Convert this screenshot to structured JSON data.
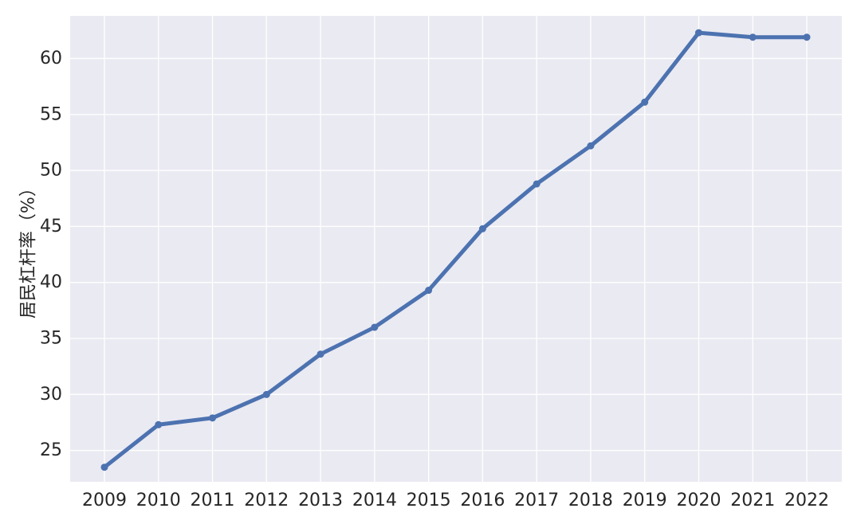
{
  "chart_data": {
    "type": "line",
    "title": "",
    "xlabel": "",
    "ylabel": "居民杠杆率（%）",
    "x": [
      "2009",
      "2010",
      "2011",
      "2012",
      "2013",
      "2014",
      "2015",
      "2016",
      "2017",
      "2018",
      "2019",
      "2020",
      "2021",
      "2022"
    ],
    "series": [
      {
        "values": [
          23.5,
          27.3,
          27.9,
          30.0,
          33.6,
          36.0,
          39.3,
          44.8,
          48.8,
          52.2,
          56.1,
          62.3,
          61.9,
          61.9
        ]
      }
    ],
    "ylim": [
      22.2,
      63.8
    ],
    "yticks": [
      25,
      30,
      35,
      40,
      45,
      50,
      55,
      60
    ],
    "grid": true,
    "colors": {
      "line": "#4c72b0",
      "plot_background": "#eaeaf2",
      "grid": "#ffffff",
      "text": "#262626"
    }
  }
}
